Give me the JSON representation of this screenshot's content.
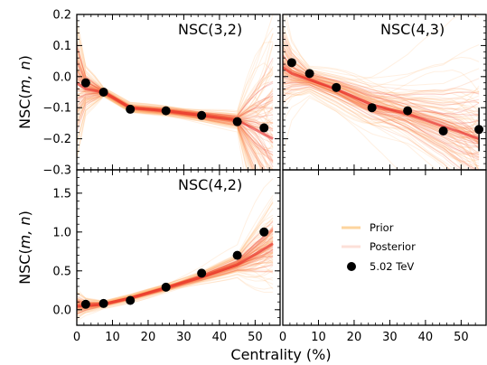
{
  "chart_data": [
    {
      "type": "scatter",
      "title": "NSC(3,2)",
      "xlabel": "",
      "ylabel": "NSC(m, n)",
      "xlim": [
        0,
        57
      ],
      "ylim": [
        -0.3,
        0.2
      ],
      "yticks": [
        0.2,
        0.1,
        0.0,
        -0.1,
        -0.2,
        -0.3
      ],
      "ytick_labels": [
        "0.2",
        "0.1",
        "0.0",
        "−0.1",
        "−0.2",
        "−0.3"
      ],
      "series": [
        {
          "name": "5.02 TeV",
          "x": [
            2.5,
            7.5,
            15,
            25,
            35,
            45,
            52.5
          ],
          "y": [
            -0.02,
            -0.05,
            -0.105,
            -0.11,
            -0.125,
            -0.145,
            -0.165
          ],
          "err": [
            0,
            0,
            0,
            0,
            0,
            0,
            0
          ]
        }
      ],
      "band": {
        "x": [
          0,
          2.5,
          7.5,
          15,
          25,
          35,
          45,
          55
        ],
        "center": [
          -0.02,
          -0.04,
          -0.05,
          -0.1,
          -0.11,
          -0.125,
          -0.14,
          -0.2
        ],
        "halfwidth": [
          0.18,
          0.06,
          0.01,
          0.01,
          0.012,
          0.015,
          0.02,
          0.35
        ]
      }
    },
    {
      "type": "scatter",
      "title": "NSC(4,3)",
      "xlabel": "",
      "ylabel": "",
      "xlim": [
        0,
        57
      ],
      "ylim": [
        -0.3,
        0.2
      ],
      "series": [
        {
          "name": "5.02 TeV",
          "x": [
            2.5,
            7.5,
            15,
            25,
            35,
            45,
            55
          ],
          "y": [
            0.045,
            0.01,
            -0.035,
            -0.1,
            -0.11,
            -0.175,
            -0.17
          ],
          "err": [
            0,
            0,
            0,
            0.01,
            0.01,
            0,
            0.07
          ]
        }
      ],
      "band": {
        "x": [
          0,
          2.5,
          7.5,
          15,
          25,
          35,
          45,
          55
        ],
        "center": [
          0.03,
          0.01,
          -0.01,
          -0.04,
          -0.09,
          -0.12,
          -0.16,
          -0.2
        ],
        "halfwidth": [
          0.12,
          0.07,
          0.03,
          0.04,
          0.06,
          0.08,
          0.12,
          0.2
        ]
      }
    },
    {
      "type": "scatter",
      "title": "NSC(4,2)",
      "xlabel": "Centrality (%)",
      "ylabel": "NSC(m, n)",
      "xlim": [
        0,
        57
      ],
      "ylim": [
        -0.2,
        1.8
      ],
      "xticks": [
        0,
        10,
        20,
        30,
        40,
        50
      ],
      "xtick_labels": [
        "0",
        "10",
        "20",
        "30",
        "40",
        "50"
      ],
      "yticks": [
        0.0,
        0.5,
        1.0,
        1.5
      ],
      "ytick_labels": [
        "0.0",
        "0.5",
        "1.0",
        "1.5"
      ],
      "series": [
        {
          "name": "5.02 TeV",
          "x": [
            2.5,
            7.5,
            15,
            25,
            35,
            45,
            52.5
          ],
          "y": [
            0.07,
            0.08,
            0.12,
            0.29,
            0.47,
            0.7,
            1.0
          ],
          "err": [
            0,
            0,
            0,
            0,
            0,
            0,
            0
          ]
        }
      ],
      "band": {
        "x": [
          0,
          2.5,
          7.5,
          15,
          25,
          35,
          45,
          55
        ],
        "center": [
          0.05,
          0.05,
          0.07,
          0.15,
          0.28,
          0.42,
          0.58,
          0.85
        ],
        "halfwidth": [
          0.15,
          0.08,
          0.03,
          0.03,
          0.04,
          0.06,
          0.1,
          0.5
        ]
      }
    },
    {
      "type": "legend",
      "title": "",
      "xlabel": "",
      "xticks": [
        0,
        10,
        20,
        30,
        40,
        50
      ],
      "xtick_labels": [
        "0",
        "10",
        "20",
        "30",
        "40",
        "50"
      ],
      "legend": [
        {
          "label": "Prior",
          "kind": "line",
          "color": "#fdd49e"
        },
        {
          "label": "Posterior",
          "kind": "line",
          "color": "#fcbba1"
        },
        {
          "label": "5.02 TeV",
          "kind": "marker",
          "color": "#000000"
        }
      ]
    }
  ],
  "colors": {
    "prior": "#fdae61",
    "posterior": "#ef3b2c",
    "core": "#e31a1c",
    "data": "#000000"
  }
}
